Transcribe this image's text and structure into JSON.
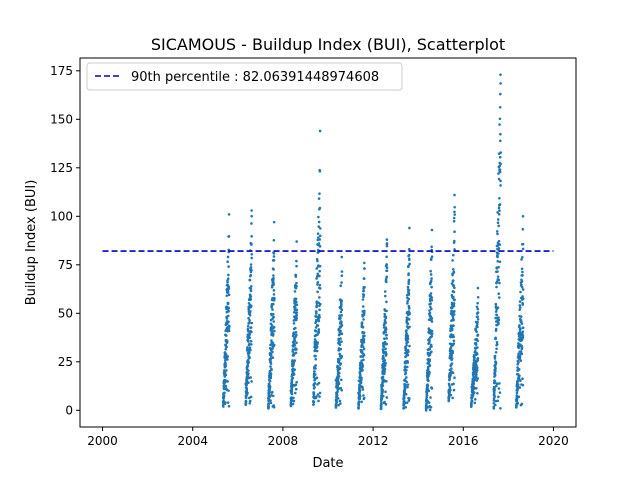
{
  "chart_data": {
    "type": "scatter",
    "title": "SICAMOUS - Buildup Index (BUI), Scatterplot",
    "xlabel": "Date",
    "ylabel": "Buildup Index (BUI)",
    "xlim": [
      1999.0,
      2021.0
    ],
    "ylim": [
      -8.6,
      181.6
    ],
    "x_ticks": [
      2000,
      2004,
      2008,
      2012,
      2016,
      2020
    ],
    "x_tick_labels": [
      "2000",
      "2004",
      "2008",
      "2012",
      "2016",
      "2020"
    ],
    "y_ticks": [
      0,
      25,
      50,
      75,
      100,
      125,
      150,
      175
    ],
    "y_tick_labels": [
      "0",
      "25",
      "50",
      "75",
      "100",
      "125",
      "150",
      "175"
    ],
    "grid": false,
    "legend_position": "top-left",
    "colors": {
      "points": "#1f77b4",
      "reference_line": "#0000cc"
    },
    "reference_line": {
      "label": "90th percentile : 82.06391448974608",
      "y": 82.06391448974608,
      "x_range": [
        2000.0,
        2020.0
      ],
      "style": "dashed"
    },
    "seasons": [
      {
        "year": 2005,
        "start": 2005.35,
        "end": 2005.62,
        "min": 2,
        "max": 101
      },
      {
        "year": 2006,
        "start": 2006.35,
        "end": 2006.62,
        "min": 3,
        "max": 103
      },
      {
        "year": 2007,
        "start": 2007.35,
        "end": 2007.62,
        "min": 1,
        "max": 97
      },
      {
        "year": 2008,
        "start": 2008.35,
        "end": 2008.62,
        "min": 3,
        "max": 87
      },
      {
        "year": 2009,
        "start": 2009.35,
        "end": 2009.66,
        "min": 3,
        "max": 144
      },
      {
        "year": 2010,
        "start": 2010.35,
        "end": 2010.62,
        "min": 2,
        "max": 79
      },
      {
        "year": 2011,
        "start": 2011.35,
        "end": 2011.62,
        "min": 1,
        "max": 76
      },
      {
        "year": 2012,
        "start": 2012.35,
        "end": 2012.62,
        "min": 1,
        "max": 88
      },
      {
        "year": 2013,
        "start": 2013.35,
        "end": 2013.62,
        "min": 1,
        "max": 94
      },
      {
        "year": 2014,
        "start": 2014.35,
        "end": 2014.62,
        "min": 0,
        "max": 93
      },
      {
        "year": 2015,
        "start": 2015.35,
        "end": 2015.62,
        "min": 6,
        "max": 111
      },
      {
        "year": 2016,
        "start": 2016.35,
        "end": 2016.66,
        "min": 2,
        "max": 63
      },
      {
        "year": 2017,
        "start": 2017.35,
        "end": 2017.66,
        "min": 1,
        "max": 173
      },
      {
        "year": 2018,
        "start": 2018.35,
        "end": 2018.66,
        "min": 2,
        "max": 100
      }
    ]
  }
}
